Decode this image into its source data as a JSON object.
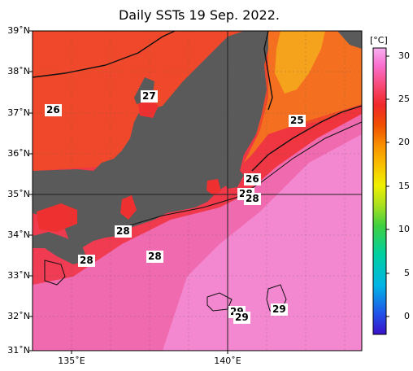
{
  "title": "Daily SSTs 19 Sep. 2022.",
  "colorbar": {
    "unit": "[°C]",
    "ticks": [
      "30",
      "25",
      "20",
      "15",
      "10",
      "5",
      "0"
    ],
    "colors": [
      "#3a10c8",
      "#2050e8",
      "#00b4e6",
      "#00d0a0",
      "#40d040",
      "#a8e020",
      "#f0f000",
      "#f8c000",
      "#f89000",
      "#f05000",
      "#f02828",
      "#f84a78",
      "#f870d0",
      "#f8b0f0"
    ]
  },
  "axes": {
    "lat_labels": [
      "39˚N",
      "38˚N",
      "37˚N",
      "36˚N",
      "35˚N",
      "34˚N",
      "33˚N",
      "32˚N",
      "31˚N"
    ],
    "lon_labels": [
      "135˚E",
      "140˚E"
    ]
  },
  "contour_labels": [
    "26",
    "27",
    "25",
    "26",
    "28",
    "28",
    "28",
    "28",
    "28",
    "29",
    "29",
    "29"
  ],
  "colors": {
    "land": "#5a5a5a",
    "sea_warm_pink": "#f06ab0",
    "sea_red": "#ef3030",
    "sea_orange": "#f46e24",
    "sea_yellow": "#f5a21c",
    "grid": "#222222"
  }
}
